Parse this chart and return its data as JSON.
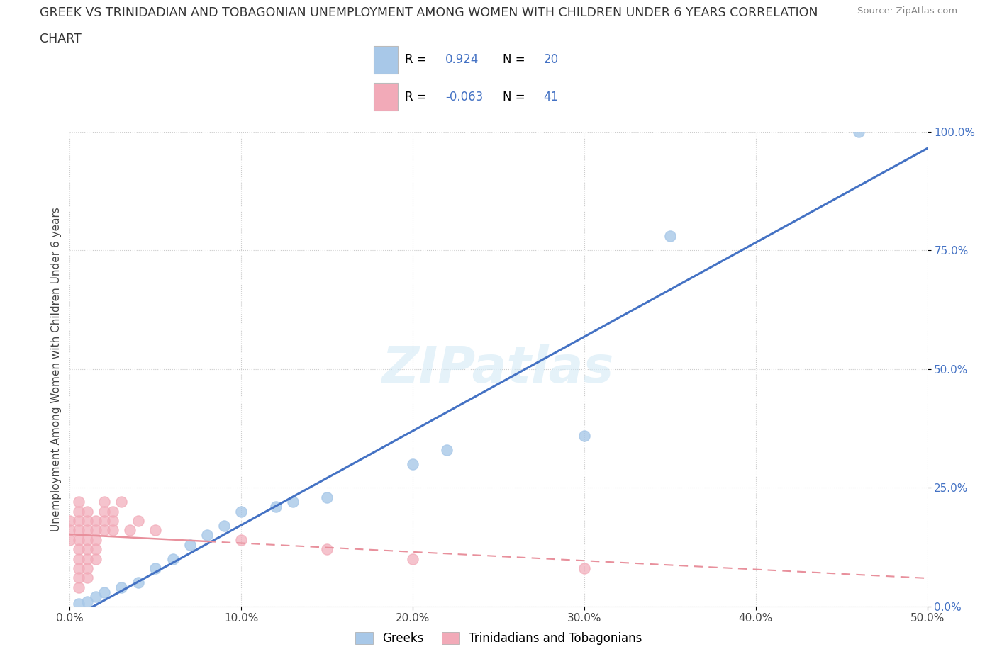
{
  "title_line1": "GREEK VS TRINIDADIAN AND TOBAGONIAN UNEMPLOYMENT AMONG WOMEN WITH CHILDREN UNDER 6 YEARS CORRELATION",
  "title_line2": "CHART",
  "source": "Source: ZipAtlas.com",
  "xlim": [
    0,
    0.5
  ],
  "ylim": [
    0,
    1.0
  ],
  "watermark": "ZIPatlas",
  "legend_labels": [
    "Greeks",
    "Trinidadians and Tobagonians"
  ],
  "greek_color": "#a8c8e8",
  "trini_color": "#f2aab8",
  "greek_line_color": "#4472c4",
  "trini_line_color": "#e8909c",
  "R_greek": "0.924",
  "N_greek": "20",
  "R_trini": "-0.063",
  "N_trini": "41",
  "stat_color": "#4472c4",
  "ylabel": "Unemployment Among Women with Children Under 6 years",
  "greek_scatter": [
    [
      0.005,
      0.005
    ],
    [
      0.01,
      0.01
    ],
    [
      0.015,
      0.02
    ],
    [
      0.02,
      0.03
    ],
    [
      0.03,
      0.04
    ],
    [
      0.04,
      0.05
    ],
    [
      0.05,
      0.08
    ],
    [
      0.06,
      0.1
    ],
    [
      0.07,
      0.13
    ],
    [
      0.08,
      0.15
    ],
    [
      0.09,
      0.17
    ],
    [
      0.1,
      0.2
    ],
    [
      0.12,
      0.21
    ],
    [
      0.13,
      0.22
    ],
    [
      0.15,
      0.23
    ],
    [
      0.2,
      0.3
    ],
    [
      0.22,
      0.33
    ],
    [
      0.3,
      0.36
    ],
    [
      0.35,
      0.78
    ],
    [
      0.46,
      1.0
    ]
  ],
  "trini_scatter": [
    [
      0.0,
      0.18
    ],
    [
      0.0,
      0.16
    ],
    [
      0.0,
      0.14
    ],
    [
      0.005,
      0.22
    ],
    [
      0.005,
      0.2
    ],
    [
      0.005,
      0.18
    ],
    [
      0.005,
      0.16
    ],
    [
      0.005,
      0.14
    ],
    [
      0.005,
      0.12
    ],
    [
      0.005,
      0.1
    ],
    [
      0.005,
      0.08
    ],
    [
      0.005,
      0.06
    ],
    [
      0.005,
      0.04
    ],
    [
      0.01,
      0.2
    ],
    [
      0.01,
      0.18
    ],
    [
      0.01,
      0.16
    ],
    [
      0.01,
      0.14
    ],
    [
      0.01,
      0.12
    ],
    [
      0.01,
      0.1
    ],
    [
      0.01,
      0.08
    ],
    [
      0.01,
      0.06
    ],
    [
      0.015,
      0.18
    ],
    [
      0.015,
      0.16
    ],
    [
      0.015,
      0.14
    ],
    [
      0.015,
      0.12
    ],
    [
      0.015,
      0.1
    ],
    [
      0.02,
      0.22
    ],
    [
      0.02,
      0.2
    ],
    [
      0.02,
      0.18
    ],
    [
      0.02,
      0.16
    ],
    [
      0.025,
      0.2
    ],
    [
      0.025,
      0.18
    ],
    [
      0.025,
      0.16
    ],
    [
      0.03,
      0.22
    ],
    [
      0.035,
      0.16
    ],
    [
      0.04,
      0.18
    ],
    [
      0.05,
      0.16
    ],
    [
      0.1,
      0.14
    ],
    [
      0.15,
      0.12
    ],
    [
      0.2,
      0.1
    ],
    [
      0.3,
      0.08
    ]
  ]
}
